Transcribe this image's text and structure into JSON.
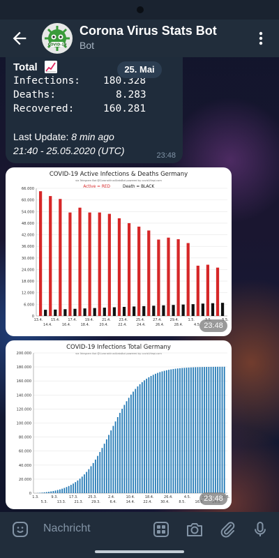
{
  "header": {
    "title": "Corona Virus Stats Bot",
    "subtitle": "Bot",
    "avatar_label": "COVID-19"
  },
  "date_separator": "25. Mai",
  "stats_message": {
    "heading": "Total",
    "rows": [
      {
        "label": "Infections:",
        "value": "180.328"
      },
      {
        "label": "Deaths:",
        "value": "8.283"
      },
      {
        "label": "Recovered:",
        "value": "160.281"
      }
    ],
    "last_update_label": "Last Update:",
    "last_update_value": "8 min ago",
    "timestamp": "21:40 - 25.05.2020 (UTC)",
    "time": "23:48"
  },
  "chart1": {
    "time": "23:48",
    "chart_data": {
      "type": "bar",
      "title": "COVID-19 Active Infections & Deaths Germany",
      "subtitle": "via Telegram Bot @CoronaVirusStatsBot powered by covid19api.com",
      "legend": {
        "active": "Active = RED",
        "death": "Death = BLACK"
      },
      "ylim": [
        0,
        66000
      ],
      "yticks": [
        "0",
        "6.000",
        "12.000",
        "18.000",
        "24.000",
        "30.000",
        "36.000",
        "42.000",
        "48.000",
        "54.000",
        "60.000",
        "66.000"
      ],
      "xticks_top": [
        "13.4.",
        "15.4.",
        "17.4.",
        "19.4.",
        "21.4.",
        "23.4.",
        "25.4.",
        "27.4.",
        "29.4.",
        "1.5.",
        "3.5.",
        "5.5."
      ],
      "xticks_bottom": [
        "14.4.",
        "16.4.",
        "18.4.",
        "20.4.",
        "22.4.",
        "24.4.",
        "26.4.",
        "28.4.",
        "4.5.",
        "5.5."
      ],
      "series": [
        {
          "name": "Active",
          "color": "#d62728",
          "values": [
            64500,
            62000,
            60500,
            53500,
            56000,
            53500,
            53500,
            52800,
            50500,
            48000,
            46200,
            44200,
            39500,
            40500,
            39700,
            37700,
            26000,
            26500,
            25000
          ]
        },
        {
          "name": "Death",
          "color": "#111111",
          "values": [
            3200,
            3300,
            3500,
            3700,
            3900,
            4100,
            4300,
            4500,
            4700,
            4900,
            5100,
            5300,
            5500,
            5700,
            5900,
            6100,
            6400,
            6600,
            6800
          ]
        }
      ]
    }
  },
  "chart2": {
    "time": "23:48",
    "chart_data": {
      "type": "bar",
      "title": "COVID-19 Infections Total Germany",
      "subtitle": "via Telegram Bot @CoronaVirusStatsBot powered by covid19api.com",
      "ylim": [
        0,
        200000
      ],
      "yticks": [
        "0",
        "20.000",
        "40.000",
        "60.000",
        "80.000",
        "100.000",
        "120.000",
        "140.000",
        "160.000",
        "180.000",
        "200.000"
      ],
      "xticks_top": [
        "1.3.",
        "9.3.",
        "17.3.",
        "25.3.",
        "2.4.",
        "10.4.",
        "18.4.",
        "26.4.",
        "4.5.",
        "12.5.",
        "20.5."
      ],
      "xticks_bottom": [
        "5.3.",
        "13.3.",
        "21.3.",
        "29.3.",
        "6.4.",
        "14.4.",
        "22.4.",
        "30.4.",
        "8.5.",
        "16.5.",
        "24.5."
      ],
      "series": [
        {
          "name": "Infections",
          "color": "#1f77b4",
          "start": 0,
          "end": 180328,
          "days": 86
        }
      ]
    }
  },
  "input": {
    "placeholder": "Nachricht"
  }
}
